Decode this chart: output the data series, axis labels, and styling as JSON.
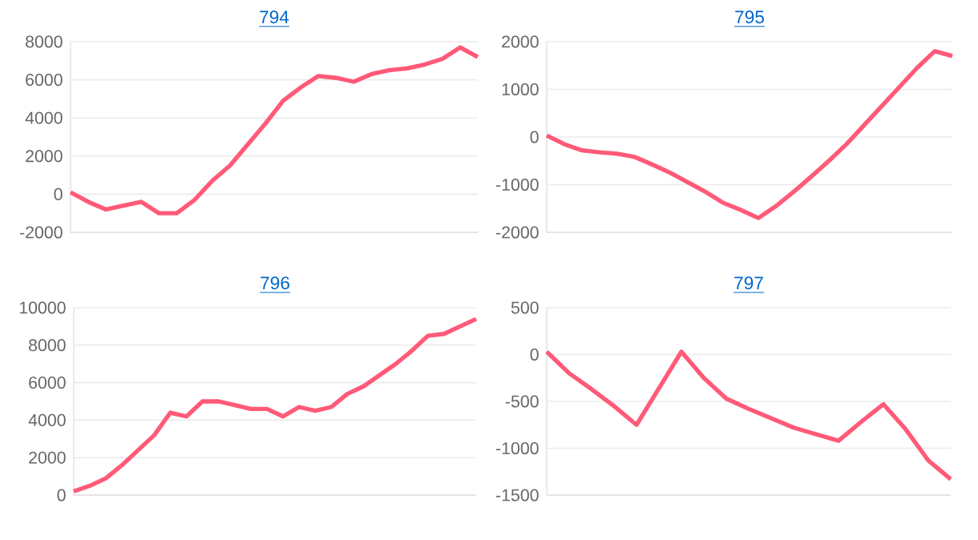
{
  "chart_data": [
    {
      "type": "line",
      "title": "794",
      "tick_labels": "y",
      "grid": "y",
      "color": "#ff5a78",
      "categories": [
        null,
        null,
        null,
        null,
        null,
        null,
        null,
        null,
        null,
        null,
        null,
        null,
        null,
        null,
        null,
        null,
        null,
        null,
        null,
        null,
        null,
        null,
        null,
        null
      ],
      "values": [
        100,
        -400,
        -800,
        -600,
        -400,
        -1000,
        -1000,
        -300,
        700,
        1500,
        2600,
        3700,
        4900,
        5600,
        6200,
        6100,
        5900,
        6300,
        6500,
        6600,
        6800,
        7100,
        7700,
        7200
      ],
      "ylim": [
        -2000,
        8000
      ],
      "yticks": [
        -2000,
        0,
        2000,
        4000,
        6000,
        8000
      ]
    },
    {
      "type": "line",
      "title": "795",
      "tick_labels": "y",
      "grid": "y",
      "color": "#ff5a78",
      "categories": [
        null,
        null,
        null,
        null,
        null,
        null,
        null,
        null,
        null,
        null,
        null,
        null,
        null,
        null,
        null,
        null,
        null,
        null,
        null,
        null,
        null,
        null,
        null,
        null
      ],
      "values": [
        30,
        -150,
        -280,
        -320,
        -350,
        -420,
        -580,
        -750,
        -950,
        -1150,
        -1380,
        -1530,
        -1700,
        -1450,
        -1150,
        -830,
        -500,
        -150,
        250,
        650,
        1050,
        1450,
        1800,
        1700
      ],
      "ylim": [
        -2000,
        2000
      ],
      "yticks": [
        -2000,
        -1000,
        0,
        1000,
        2000
      ]
    },
    {
      "type": "line",
      "title": "796",
      "tick_labels": "y",
      "grid": "y",
      "color": "#ff5a78",
      "categories": [
        null,
        null,
        null,
        null,
        null,
        null,
        null,
        null,
        null,
        null,
        null,
        null,
        null,
        null,
        null,
        null,
        null,
        null,
        null,
        null,
        null,
        null,
        null,
        null,
        null,
        null
      ],
      "values": [
        200,
        500,
        900,
        1600,
        2400,
        3200,
        4400,
        4200,
        5000,
        5000,
        4800,
        4600,
        4600,
        4200,
        4700,
        4500,
        4700,
        5400,
        5800,
        6400,
        7000,
        7700,
        8500,
        8600,
        9000,
        9400
      ],
      "ylim": [
        0,
        10000
      ],
      "yticks": [
        0,
        2000,
        4000,
        6000,
        8000,
        10000
      ]
    },
    {
      "type": "line",
      "title": "797",
      "tick_labels": "y",
      "grid": "y",
      "color": "#ff5a78",
      "categories": [
        null,
        null,
        null,
        null,
        null,
        null,
        null,
        null,
        null,
        null,
        null,
        null,
        null,
        null,
        null,
        null,
        null,
        null,
        null
      ],
      "values": [
        30,
        -200,
        -370,
        -550,
        -750,
        -360,
        30,
        -250,
        -470,
        -580,
        -680,
        -780,
        -850,
        -920,
        -720,
        -530,
        -800,
        -1130,
        -1330
      ],
      "ylim": [
        -1500,
        500
      ],
      "yticks": [
        -1500,
        -1000,
        -500,
        0,
        500
      ]
    }
  ]
}
